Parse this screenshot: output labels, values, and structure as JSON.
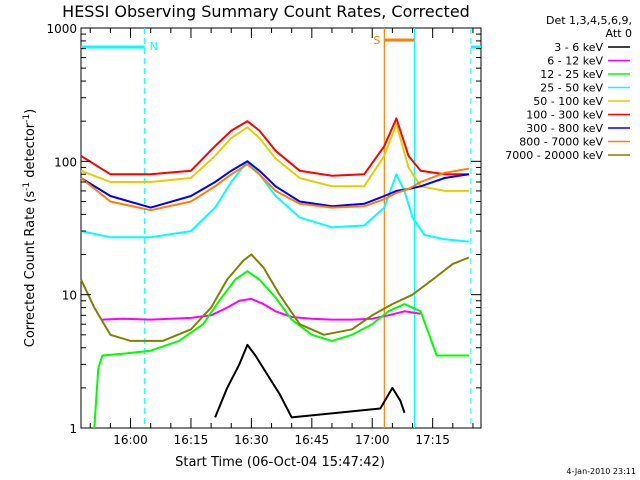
{
  "chart_data": {
    "type": "line",
    "title": "HESSI Observing Summary Count Rates, Corrected",
    "xlabel": "Start Time (06-Oct-04 15:47:42)",
    "ylabel": "Corrected Count Rate (s",
    "ylabel_sup1": "-1",
    "ylabel_mid": " detector",
    "ylabel_sup2": "-1",
    "ylabel_end": ")",
    "yscale": "log",
    "xlim": [
      "15:47:42",
      "17:27:00"
    ],
    "ylim": [
      1,
      1000
    ],
    "x_ticks": [
      "16:00",
      "16:15",
      "16:30",
      "16:45",
      "17:00",
      "17:15"
    ],
    "y_ticks": [
      {
        "label": "1",
        "value": 1
      },
      {
        "label": "10",
        "value": 10
      },
      {
        "label": "100",
        "value": 100
      },
      {
        "label": "1000",
        "value": 1000
      }
    ],
    "legend_header": [
      "Det 1,3,4,5,6,9,",
      "Att 0"
    ],
    "legend_placement": "right",
    "series": [
      {
        "name": "3 - 6 keV",
        "color": "#000000",
        "points": [
          [
            "16:21:00",
            1.2
          ],
          [
            "16:24:00",
            2.0
          ],
          [
            "16:27:00",
            3.0
          ],
          [
            "16:29:00",
            4.2
          ],
          [
            "16:31:00",
            3.5
          ],
          [
            "16:34:00",
            2.5
          ],
          [
            "16:37:00",
            1.8
          ],
          [
            "16:40:00",
            1.2
          ],
          [
            "17:02:00",
            1.4
          ],
          [
            "17:05:00",
            2.0
          ],
          [
            "17:07:00",
            1.6
          ],
          [
            "17:08:00",
            1.3
          ]
        ]
      },
      {
        "name": "6 - 12 keV",
        "color": "#ff00ff",
        "points": [
          [
            "15:53:00",
            6.5
          ],
          [
            "15:58:00",
            6.6
          ],
          [
            "16:05:00",
            6.5
          ],
          [
            "16:10:00",
            6.6
          ],
          [
            "16:15:00",
            6.7
          ],
          [
            "16:20:00",
            7.0
          ],
          [
            "16:24:00",
            8.0
          ],
          [
            "16:27:00",
            9.0
          ],
          [
            "16:30:00",
            9.3
          ],
          [
            "16:33:00",
            8.5
          ],
          [
            "16:36:00",
            7.5
          ],
          [
            "16:40:00",
            6.8
          ],
          [
            "16:45:00",
            6.6
          ],
          [
            "16:50:00",
            6.5
          ],
          [
            "16:55:00",
            6.5
          ],
          [
            "17:00:00",
            6.6
          ],
          [
            "17:04:00",
            7.0
          ],
          [
            "17:08:00",
            7.5
          ],
          [
            "17:12:00",
            7.2
          ]
        ]
      },
      {
        "name": "12 - 25 keV",
        "color": "#00ff00",
        "points": [
          [
            "15:51:00",
            1.0
          ],
          [
            "15:52:00",
            2.8
          ],
          [
            "15:53:00",
            3.5
          ],
          [
            "15:58:00",
            3.6
          ],
          [
            "16:05:00",
            3.8
          ],
          [
            "16:12:00",
            4.5
          ],
          [
            "16:18:00",
            6.0
          ],
          [
            "16:22:00",
            9.0
          ],
          [
            "16:26:00",
            13.0
          ],
          [
            "16:29:00",
            15.0
          ],
          [
            "16:32:00",
            13.0
          ],
          [
            "16:36:00",
            9.5
          ],
          [
            "16:40:00",
            6.5
          ],
          [
            "16:45:00",
            5.0
          ],
          [
            "16:50:00",
            4.5
          ],
          [
            "16:55:00",
            5.0
          ],
          [
            "17:00:00",
            6.0
          ],
          [
            "17:04:00",
            7.5
          ],
          [
            "17:08:00",
            8.5
          ],
          [
            "17:12:00",
            7.5
          ],
          [
            "17:16:00",
            3.5
          ],
          [
            "17:24:00",
            3.5
          ]
        ]
      },
      {
        "name": "25 - 50 keV",
        "color": "#00ffff",
        "points": [
          [
            "15:47:42",
            30
          ],
          [
            "15:55:00",
            27
          ],
          [
            "16:05:00",
            27
          ],
          [
            "16:15:00",
            30
          ],
          [
            "16:21:00",
            45
          ],
          [
            "16:25:00",
            70
          ],
          [
            "16:29:00",
            100
          ],
          [
            "16:32:00",
            80
          ],
          [
            "16:36:00",
            55
          ],
          [
            "16:42:00",
            38
          ],
          [
            "16:50:00",
            32
          ],
          [
            "16:58:00",
            33
          ],
          [
            "17:03:00",
            45
          ],
          [
            "17:06:00",
            80
          ],
          [
            "17:08:00",
            60
          ],
          [
            "17:10:00",
            38
          ],
          [
            "17:13:00",
            28
          ],
          [
            "17:18:00",
            26
          ],
          [
            "17:24:00",
            25
          ]
        ]
      },
      {
        "name": "50 - 100 keV",
        "color": "#e0d000",
        "points": [
          [
            "15:47:42",
            85
          ],
          [
            "15:55:00",
            70
          ],
          [
            "16:05:00",
            70
          ],
          [
            "16:15:00",
            75
          ],
          [
            "16:21:00",
            110
          ],
          [
            "16:25:00",
            150
          ],
          [
            "16:29:00",
            180
          ],
          [
            "16:32:00",
            150
          ],
          [
            "16:36:00",
            105
          ],
          [
            "16:42:00",
            75
          ],
          [
            "16:50:00",
            65
          ],
          [
            "16:58:00",
            65
          ],
          [
            "17:03:00",
            110
          ],
          [
            "17:06:00",
            190
          ],
          [
            "17:09:00",
            90
          ],
          [
            "17:12:00",
            65
          ],
          [
            "17:18:00",
            60
          ],
          [
            "17:24:00",
            60
          ]
        ]
      },
      {
        "name": "100 - 300 keV",
        "color": "#ff0000",
        "points": [
          [
            "15:47:42",
            110
          ],
          [
            "15:55:00",
            80
          ],
          [
            "16:05:00",
            80
          ],
          [
            "16:15:00",
            85
          ],
          [
            "16:21:00",
            130
          ],
          [
            "16:25:00",
            170
          ],
          [
            "16:29:00",
            200
          ],
          [
            "16:32:00",
            170
          ],
          [
            "16:36:00",
            120
          ],
          [
            "16:42:00",
            85
          ],
          [
            "16:50:00",
            78
          ],
          [
            "16:58:00",
            80
          ],
          [
            "17:03:00",
            130
          ],
          [
            "17:06:00",
            210
          ],
          [
            "17:09:00",
            110
          ],
          [
            "17:12:00",
            85
          ],
          [
            "17:18:00",
            80
          ],
          [
            "17:24:00",
            80
          ]
        ]
      },
      {
        "name": "300 - 800 keV",
        "color": "#0000ff",
        "points": [
          [
            "15:47:42",
            75
          ],
          [
            "15:55:00",
            55
          ],
          [
            "16:05:00",
            45
          ],
          [
            "16:15:00",
            55
          ],
          [
            "16:21:00",
            70
          ],
          [
            "16:25:00",
            85
          ],
          [
            "16:29:00",
            100
          ],
          [
            "16:32:00",
            85
          ],
          [
            "16:36:00",
            65
          ],
          [
            "16:42:00",
            50
          ],
          [
            "16:50:00",
            46
          ],
          [
            "16:58:00",
            48
          ],
          [
            "17:03:00",
            55
          ],
          [
            "17:06:00",
            60
          ],
          [
            "17:09:00",
            62
          ],
          [
            "17:12:00",
            65
          ],
          [
            "17:18:00",
            75
          ],
          [
            "17:24:00",
            80
          ]
        ]
      },
      {
        "name": "800 - 7000 keV",
        "color": "#ff8000",
        "points": [
          [
            "15:47:42",
            75
          ],
          [
            "15:55:00",
            50
          ],
          [
            "16:05:00",
            43
          ],
          [
            "16:15:00",
            50
          ],
          [
            "16:21:00",
            65
          ],
          [
            "16:25:00",
            80
          ],
          [
            "16:29:00",
            95
          ],
          [
            "16:32:00",
            80
          ],
          [
            "16:36:00",
            60
          ],
          [
            "16:42:00",
            48
          ],
          [
            "16:50:00",
            45
          ],
          [
            "16:58:00",
            46
          ],
          [
            "17:03:00",
            52
          ],
          [
            "17:06:00",
            58
          ],
          [
            "17:09:00",
            62
          ],
          [
            "17:12:00",
            70
          ],
          [
            "17:18:00",
            82
          ],
          [
            "17:24:00",
            88
          ]
        ]
      },
      {
        "name": "7000 - 20000 keV",
        "color": "#808000",
        "points": [
          [
            "15:47:42",
            13
          ],
          [
            "15:51:00",
            8
          ],
          [
            "15:55:00",
            5
          ],
          [
            "16:00:00",
            4.5
          ],
          [
            "16:08:00",
            4.5
          ],
          [
            "16:15:00",
            5.5
          ],
          [
            "16:20:00",
            8
          ],
          [
            "16:24:00",
            13
          ],
          [
            "16:28:00",
            18
          ],
          [
            "16:30:00",
            20
          ],
          [
            "16:33:00",
            16
          ],
          [
            "16:37:00",
            10
          ],
          [
            "16:42:00",
            6
          ],
          [
            "16:48:00",
            5
          ],
          [
            "16:55:00",
            5.5
          ],
          [
            "17:00:00",
            7
          ],
          [
            "17:05:00",
            8.5
          ],
          [
            "17:10:00",
            10
          ],
          [
            "17:15:00",
            13
          ],
          [
            "17:20:00",
            17
          ],
          [
            "17:24:00",
            19
          ]
        ]
      }
    ],
    "markers": [
      {
        "type": "night",
        "label": "N",
        "time": "16:03:30",
        "color": "#00ffff"
      },
      {
        "type": "day",
        "time": "17:24:30",
        "color": "#00ffff"
      },
      {
        "type": "saa_start",
        "label": "S",
        "time": "17:03:00",
        "color": "#ff8000"
      },
      {
        "type": "saa_end",
        "time": "17:10:30",
        "color": "#00ffff"
      }
    ]
  },
  "timestamp": "4-Jan-2010 23:11"
}
